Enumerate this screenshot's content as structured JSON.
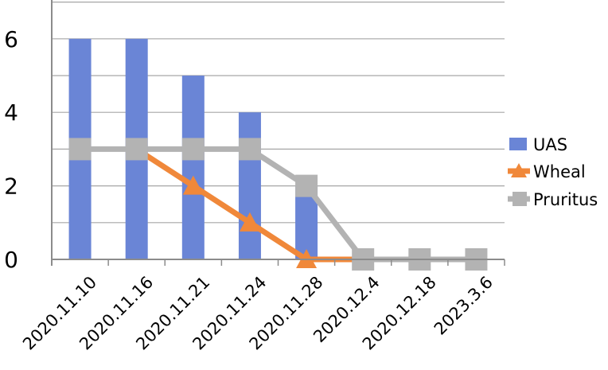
{
  "chart_data": {
    "type": "bar",
    "categories": [
      "2020.11.10",
      "2020.11.16",
      "2020.11.21",
      "2020.11.24",
      "2020.11.28",
      "2020.12.4",
      "2020.12.18",
      "2023.3.6"
    ],
    "series": [
      {
        "name": "UAS",
        "type": "bar",
        "values": [
          6,
          6,
          5,
          4,
          2,
          0,
          0,
          0
        ],
        "color": "#6A85D6"
      },
      {
        "name": "Wheal",
        "type": "line",
        "marker": "triangle",
        "values": [
          null,
          3,
          2,
          1,
          0,
          0,
          null,
          null
        ],
        "color": "#F0883A"
      },
      {
        "name": "Pruritus",
        "type": "line",
        "marker": "square",
        "values": [
          3,
          3,
          3,
          3,
          2,
          0,
          0,
          0
        ],
        "color": "#B3B3B3"
      }
    ],
    "y_ticks": [
      "0",
      "2",
      "4",
      "6"
    ],
    "ylim": [
      0,
      7
    ],
    "grid": true,
    "legend_position": "right"
  }
}
